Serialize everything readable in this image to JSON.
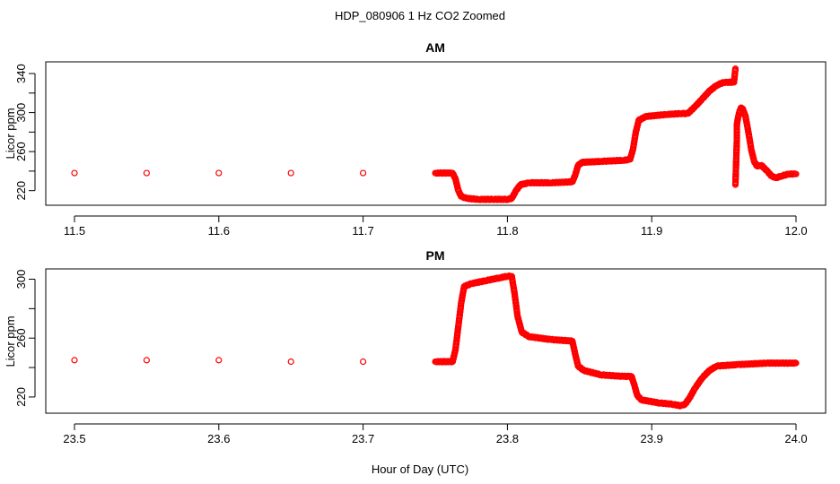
{
  "figure": {
    "title": "HDP_080906  1 Hz CO2 Zoomed",
    "xlabel": "Hour of Day (UTC)"
  },
  "chart_data": [
    {
      "type": "scatter",
      "title": "AM",
      "xlabel": "",
      "ylabel": "Licor ppm",
      "xlim": [
        11.5,
        12.0
      ],
      "ylim": [
        205,
        352
      ],
      "x_ticks": [
        "11.5",
        "11.6",
        "11.7",
        "11.8",
        "11.9",
        "12.0"
      ],
      "y_ticks": [
        "220",
        "260",
        "300",
        "340"
      ],
      "marker_color": "#ff0000",
      "grid": false,
      "series": [
        {
          "points": [
            [
              11.5,
              238
            ],
            [
              11.55,
              238
            ],
            [
              11.6,
              238
            ],
            [
              11.65,
              238
            ],
            [
              11.7,
              238
            ],
            [
              11.75,
              238
            ],
            [
              11.762,
              238
            ],
            [
              11.764,
              232
            ],
            [
              11.766,
              220
            ],
            [
              11.768,
              214
            ],
            [
              11.772,
              212
            ],
            [
              11.78,
              211
            ],
            [
              11.79,
              211
            ],
            [
              11.8,
              211
            ],
            [
              11.803,
              212
            ],
            [
              11.806,
              220
            ],
            [
              11.809,
              226
            ],
            [
              11.815,
              228
            ],
            [
              11.83,
              228
            ],
            [
              11.845,
              229
            ],
            [
              11.847,
              236
            ],
            [
              11.849,
              246
            ],
            [
              11.852,
              249
            ],
            [
              11.865,
              250
            ],
            [
              11.88,
              251
            ],
            [
              11.885,
              252
            ],
            [
              11.887,
              262
            ],
            [
              11.889,
              280
            ],
            [
              11.891,
              292
            ],
            [
              11.896,
              296
            ],
            [
              11.91,
              298
            ],
            [
              11.92,
              299
            ],
            [
              11.925,
              299
            ],
            [
              11.93,
              306
            ],
            [
              11.935,
              314
            ],
            [
              11.94,
              322
            ],
            [
              11.945,
              328
            ],
            [
              11.95,
              331
            ],
            [
              11.957,
              331
            ],
            [
              11.958,
              345
            ],
            [
              11.958,
              226
            ],
            [
              11.959,
              272
            ],
            [
              11.959,
              288
            ],
            [
              11.96,
              296
            ],
            [
              11.961,
              302
            ],
            [
              11.962,
              305
            ],
            [
              11.963,
              304
            ],
            [
              11.965,
              296
            ],
            [
              11.967,
              280
            ],
            [
              11.969,
              262
            ],
            [
              11.971,
              250
            ],
            [
              11.973,
              245
            ],
            [
              11.976,
              246
            ],
            [
              11.98,
              240
            ],
            [
              11.983,
              235
            ],
            [
              11.986,
              233
            ],
            [
              11.99,
              235
            ],
            [
              11.995,
              237
            ],
            [
              12.0,
              237
            ]
          ]
        }
      ]
    },
    {
      "type": "scatter",
      "title": "PM",
      "xlabel": "Hour of Day (UTC)",
      "ylabel": "Licor ppm",
      "xlim": [
        23.5,
        24.0
      ],
      "ylim": [
        209,
        307
      ],
      "x_ticks": [
        "23.5",
        "23.6",
        "23.7",
        "23.8",
        "23.9",
        "24.0"
      ],
      "y_ticks": [
        "220",
        "260",
        "300"
      ],
      "marker_color": "#ff0000",
      "grid": false,
      "series": [
        {
          "points": [
            [
              23.5,
              245
            ],
            [
              23.55,
              245
            ],
            [
              23.6,
              245
            ],
            [
              23.65,
              244
            ],
            [
              23.7,
              244
            ],
            [
              23.75,
              244
            ],
            [
              23.762,
              244
            ],
            [
              23.764,
              252
            ],
            [
              23.766,
              268
            ],
            [
              23.768,
              284
            ],
            [
              23.77,
              295
            ],
            [
              23.775,
              297
            ],
            [
              23.785,
              299
            ],
            [
              23.795,
              301
            ],
            [
              23.8,
              302
            ],
            [
              23.803,
              302
            ],
            [
              23.805,
              290
            ],
            [
              23.807,
              275
            ],
            [
              23.81,
              264
            ],
            [
              23.815,
              261
            ],
            [
              23.83,
              259
            ],
            [
              23.845,
              258
            ],
            [
              23.847,
              249
            ],
            [
              23.849,
              241
            ],
            [
              23.853,
              238
            ],
            [
              23.865,
              235
            ],
            [
              23.88,
              234
            ],
            [
              23.886,
              234
            ],
            [
              23.888,
              228
            ],
            [
              23.89,
              221
            ],
            [
              23.893,
              218
            ],
            [
              23.905,
              216
            ],
            [
              23.915,
              215
            ],
            [
              23.92,
              214
            ],
            [
              23.923,
              215
            ],
            [
              23.926,
              219
            ],
            [
              23.93,
              226
            ],
            [
              23.935,
              233
            ],
            [
              23.94,
              238
            ],
            [
              23.945,
              241
            ],
            [
              23.96,
              242
            ],
            [
              23.98,
              243
            ],
            [
              24.0,
              243
            ]
          ]
        }
      ]
    }
  ]
}
